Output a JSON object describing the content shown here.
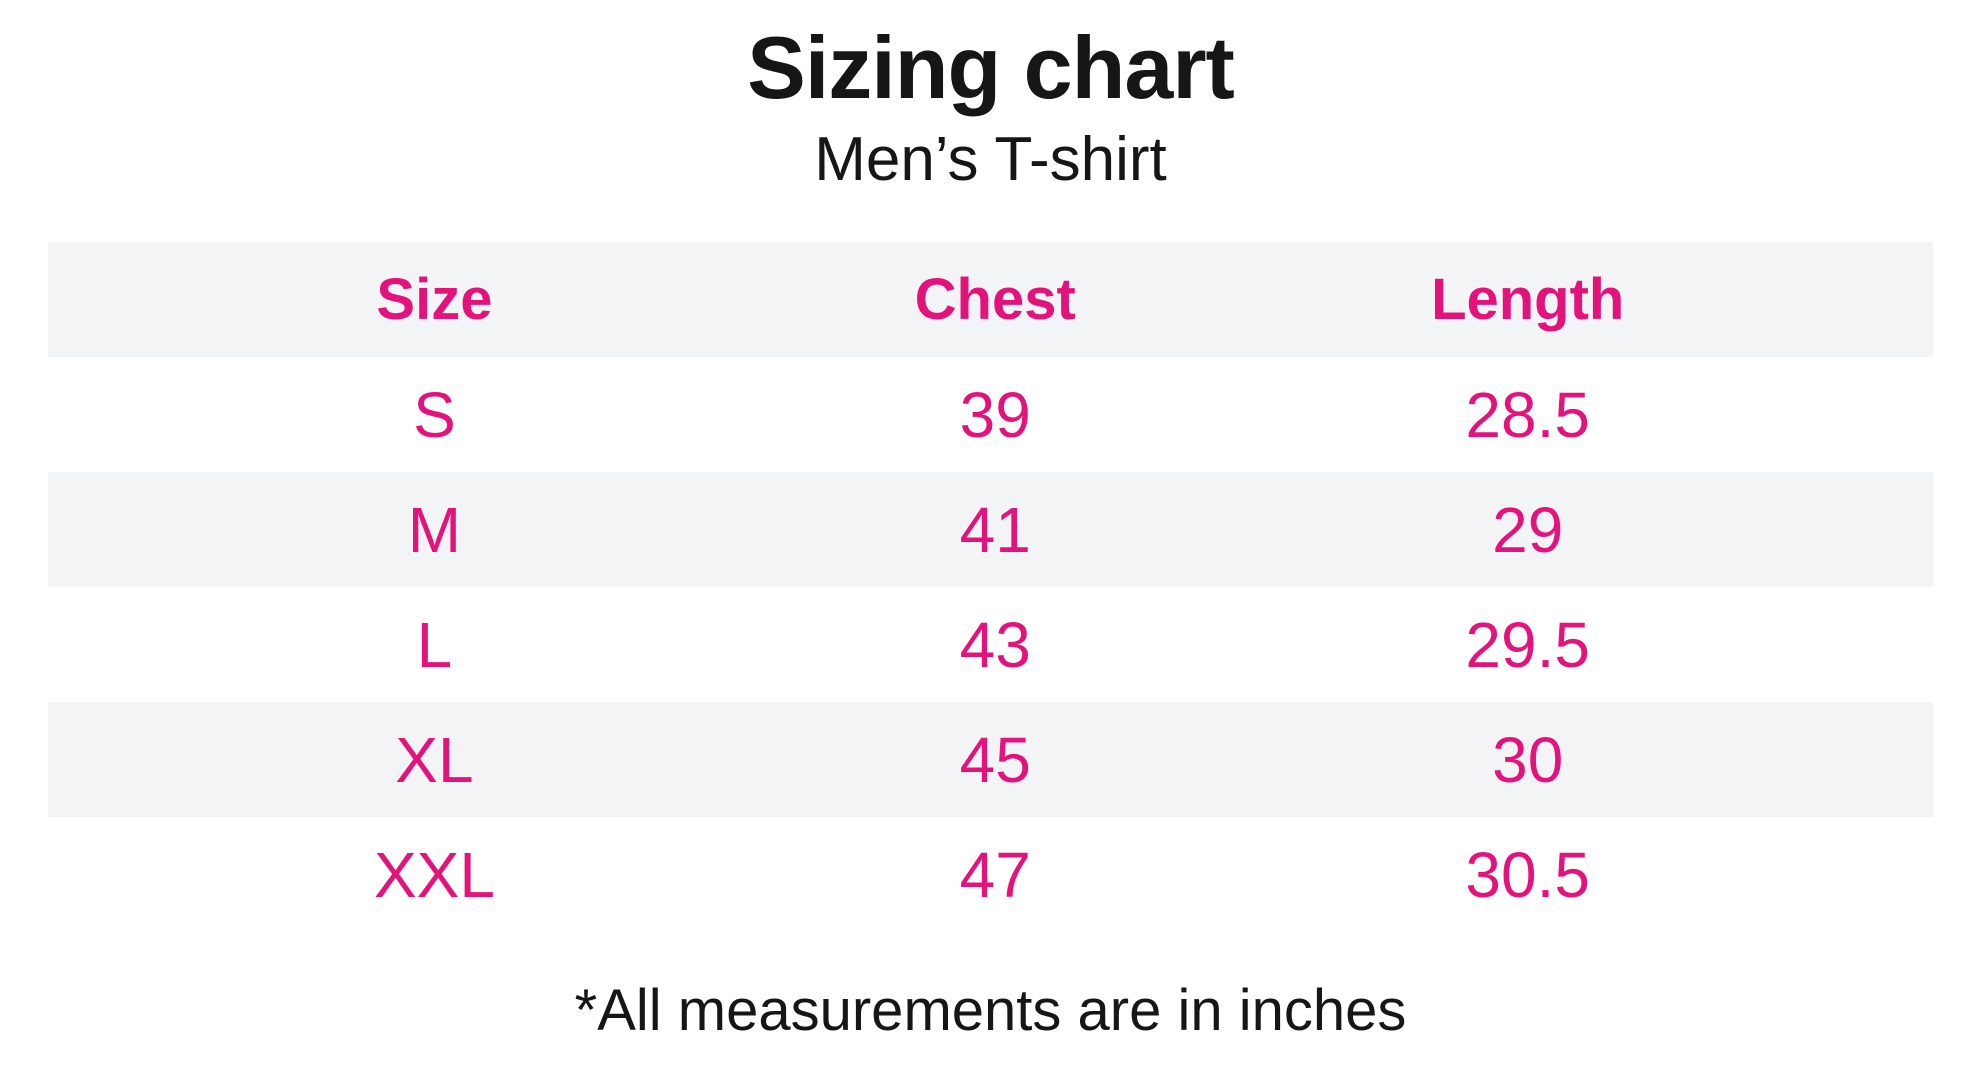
{
  "header": {
    "title": "Sizing chart",
    "subtitle": "Men’s T-shirt"
  },
  "footnote": "*All measurements are in inches",
  "colors": {
    "accent_pink": "#e4137c",
    "band_gray": "#f3f4f6",
    "text_black": "#161616",
    "background": "#ffffff"
  },
  "chart_data": {
    "type": "table",
    "title": "Sizing chart",
    "subtitle": "Men’s T-shirt",
    "columns": [
      "Size",
      "Chest",
      "Length"
    ],
    "rows": [
      {
        "size": "S",
        "chest": "39",
        "length": "28.5"
      },
      {
        "size": "M",
        "chest": "41",
        "length": "29"
      },
      {
        "size": "L",
        "chest": "43",
        "length": "29.5"
      },
      {
        "size": "XL",
        "chest": "45",
        "length": "30"
      },
      {
        "size": "XXL",
        "chest": "47",
        "length": "30.5"
      }
    ],
    "units": "inches",
    "footnote": "*All measurements are in inches",
    "layout": {
      "banded_rows": [
        "header",
        "M",
        "XL"
      ],
      "grid": "off",
      "borders": "none"
    }
  }
}
